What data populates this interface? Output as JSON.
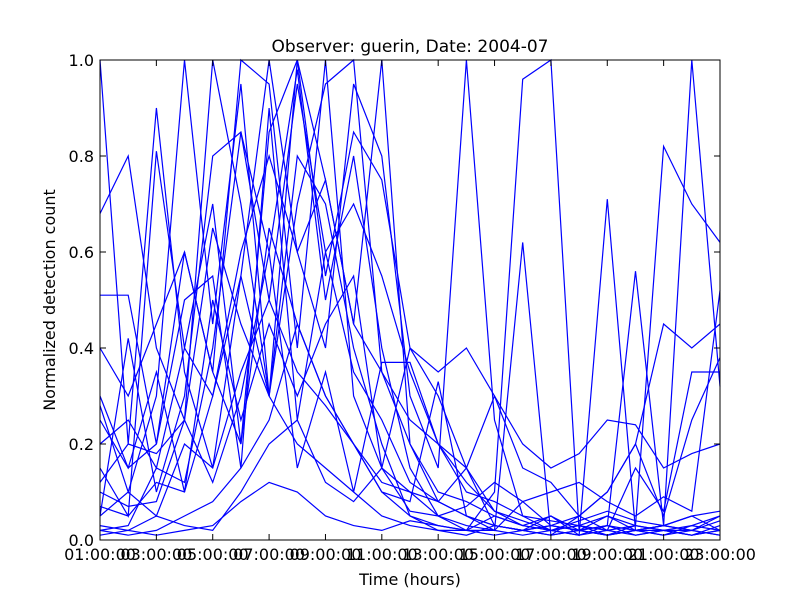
{
  "chart_data": {
    "type": "line",
    "title": "Observer: guerin, Date: 2004-07",
    "xlabel": "Time (hours)",
    "ylabel": "Normalized detection count",
    "xlim": [
      1,
      23
    ],
    "ylim": [
      0,
      1
    ],
    "x_tick_values": [
      1,
      3,
      5,
      7,
      9,
      11,
      13,
      15,
      17,
      19,
      21,
      23
    ],
    "x_tick_labels": [
      "01:00:00",
      "03:00:00",
      "05:00:00",
      "07:00:00",
      "09:00:00",
      "11:00:00",
      "13:00:00",
      "15:00:00",
      "17:00:00",
      "19:00:00",
      "21:00:00",
      "23:00:00"
    ],
    "y_tick_values": [
      0,
      0.2,
      0.4,
      0.6,
      0.8,
      1.0
    ],
    "y_tick_labels": [
      "0.0",
      "0.2",
      "0.4",
      "0.6",
      "0.8",
      "1.0"
    ],
    "line_color": "#0000ff",
    "grid": false,
    "x": [
      1,
      2,
      3,
      4,
      5,
      6,
      7,
      8,
      9,
      10,
      11,
      12,
      13,
      14,
      15,
      16,
      17,
      18,
      19,
      20,
      21,
      22,
      23
    ],
    "series": [
      {
        "values": [
          1.0,
          0.2,
          0.9,
          0.35,
          0.15,
          0.55,
          1.0,
          0.6,
          0.4,
          0.95,
          0.8,
          0.3,
          0.15,
          1.0,
          0.25,
          0.05,
          0.02,
          0.03,
          0.01,
          0.02,
          0.01,
          0.03,
          0.05
        ]
      },
      {
        "values": [
          0.68,
          0.8,
          0.4,
          0.25,
          1.0,
          0.7,
          0.3,
          1.0,
          0.75,
          0.45,
          1.0,
          0.2,
          0.1,
          0.08,
          0.05,
          0.03,
          0.02,
          0.01,
          0.02,
          0.01,
          0.02,
          0.02,
          0.04
        ]
      },
      {
        "values": [
          0.51,
          0.51,
          0.2,
          0.6,
          0.35,
          1.0,
          0.95,
          0.4,
          1.0,
          0.3,
          0.15,
          0.1,
          0.05,
          0.03,
          0.02,
          0.08,
          0.03,
          0.02,
          0.01,
          0.03,
          0.02,
          0.01,
          0.02
        ]
      },
      {
        "values": [
          0.15,
          0.05,
          0.81,
          0.4,
          0.7,
          0.2,
          0.85,
          1.0,
          0.55,
          0.85,
          0.75,
          0.4,
          0.3,
          0.15,
          0.06,
          0.03,
          0.05,
          0.02,
          0.03,
          0.01,
          0.02,
          0.03,
          0.02
        ]
      },
      {
        "values": [
          0.28,
          0.1,
          0.3,
          1.0,
          0.45,
          0.95,
          0.3,
          0.7,
          0.95,
          1.0,
          0.35,
          0.2,
          0.08,
          0.05,
          0.03,
          0.02,
          0.01,
          0.02,
          0.05,
          0.02,
          0.03,
          0.02,
          0.05
        ]
      },
      {
        "values": [
          0.05,
          0.42,
          0.1,
          0.3,
          0.8,
          0.85,
          0.5,
          0.95,
          0.6,
          0.7,
          0.55,
          0.35,
          0.2,
          0.12,
          0.06,
          0.04,
          0.02,
          0.01,
          0.03,
          0.02,
          0.02,
          0.01,
          0.03
        ]
      },
      {
        "values": [
          0.02,
          0.03,
          0.15,
          0.12,
          0.4,
          0.85,
          0.6,
          0.98,
          0.5,
          0.8,
          0.4,
          0.15,
          0.05,
          0.02,
          0.1,
          0.96,
          1.0,
          0.02,
          0.01,
          0.02,
          0.03,
          0.02,
          0.01
        ]
      },
      {
        "values": [
          0.4,
          0.3,
          0.45,
          0.6,
          0.35,
          0.2,
          0.65,
          0.45,
          0.3,
          0.2,
          0.1,
          0.08,
          0.33,
          0.05,
          0.02,
          0.62,
          0.01,
          0.05,
          0.02,
          0.03,
          0.02,
          0.01,
          0.02
        ]
      },
      {
        "values": [
          0.3,
          0.15,
          0.2,
          0.5,
          0.55,
          0.15,
          0.9,
          0.25,
          0.6,
          0.35,
          0.25,
          0.12,
          0.08,
          0.15,
          0.03,
          0.02,
          0.05,
          0.01,
          0.71,
          0.02,
          0.01,
          0.02,
          0.01
        ]
      },
      {
        "values": [
          0.1,
          0.07,
          0.08,
          0.25,
          0.65,
          0.45,
          0.3,
          0.8,
          0.7,
          0.4,
          0.2,
          0.05,
          0.02,
          0.01,
          0.03,
          0.02,
          0.01,
          0.02,
          0.03,
          0.56,
          0.03,
          0.05,
          0.02
        ]
      },
      {
        "values": [
          0.07,
          0.05,
          0.12,
          0.1,
          0.3,
          0.55,
          0.3,
          0.2,
          0.15,
          0.1,
          0.05,
          0.03,
          0.02,
          0.02,
          0.01,
          0.02,
          0.03,
          0.02,
          0.01,
          0.02,
          0.03,
          1.0,
          0.32
        ]
      },
      {
        "values": [
          0.02,
          0.01,
          0.02,
          0.05,
          0.08,
          0.15,
          0.25,
          0.45,
          0.3,
          0.2,
          0.1,
          0.05,
          0.03,
          0.02,
          0.02,
          0.01,
          0.02,
          0.03,
          0.05,
          0.03,
          0.82,
          0.7,
          0.62
        ]
      },
      {
        "values": [
          0.2,
          0.25,
          0.15,
          0.4,
          0.3,
          0.6,
          0.8,
          0.6,
          0.75,
          0.45,
          0.35,
          0.25,
          0.2,
          0.1,
          0.08,
          0.05,
          0.04,
          0.03,
          0.02,
          0.15,
          0.06,
          0.35,
          0.35
        ]
      },
      {
        "values": [
          0.05,
          0.1,
          0.05,
          0.2,
          0.15,
          0.35,
          0.5,
          0.35,
          0.28,
          0.2,
          0.12,
          0.1,
          0.08,
          0.05,
          0.03,
          0.02,
          0.03,
          0.05,
          0.1,
          0.2,
          0.45,
          0.4,
          0.45
        ]
      },
      {
        "values": [
          0.25,
          0.15,
          0.35,
          0.1,
          0.5,
          0.25,
          0.45,
          0.3,
          0.45,
          0.55,
          0.15,
          0.4,
          0.35,
          0.4,
          0.3,
          0.15,
          0.12,
          0.05,
          0.1,
          0.2,
          0.05,
          0.25,
          0.38
        ]
      },
      {
        "values": [
          0.12,
          0.2,
          0.18,
          0.25,
          0.12,
          0.3,
          0.6,
          0.15,
          0.35,
          0.1,
          0.37,
          0.37,
          0.2,
          0.15,
          0.3,
          0.2,
          0.15,
          0.18,
          0.25,
          0.24,
          0.15,
          0.18,
          0.2
        ]
      },
      {
        "values": [
          0.03,
          0.02,
          0.05,
          0.03,
          0.02,
          0.1,
          0.2,
          0.25,
          0.12,
          0.08,
          0.15,
          0.06,
          0.05,
          0.07,
          0.12,
          0.08,
          0.1,
          0.12,
          0.08,
          0.05,
          0.09,
          0.06,
          0.52
        ]
      },
      {
        "values": [
          0.01,
          0.02,
          0.01,
          0.02,
          0.03,
          0.08,
          0.12,
          0.1,
          0.05,
          0.03,
          0.02,
          0.04,
          0.03,
          0.02,
          0.05,
          0.03,
          0.02,
          0.04,
          0.06,
          0.04,
          0.03,
          0.05,
          0.06
        ]
      }
    ]
  }
}
